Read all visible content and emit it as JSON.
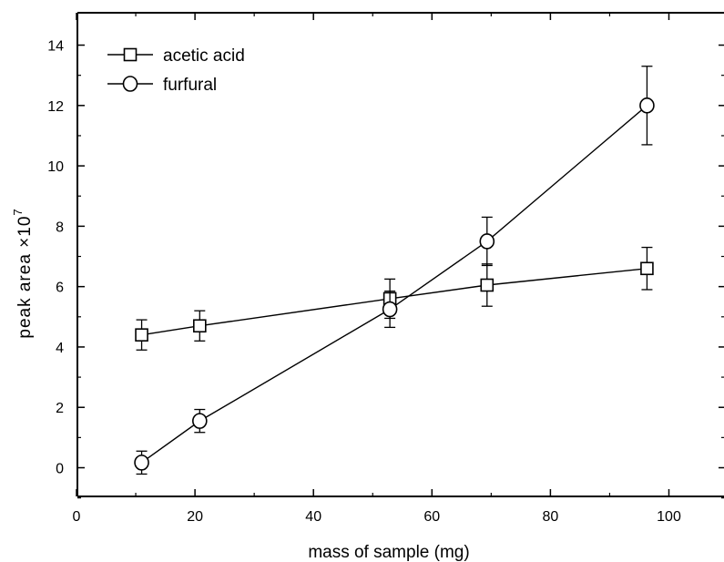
{
  "chart_data": {
    "type": "scatter",
    "xlabel": "mass of sample (mg)",
    "ylabel": "peak area ×10",
    "ylabel_exponent": "7",
    "xlim": [
      0,
      110
    ],
    "ylim": [
      -1,
      15
    ],
    "xticks": [
      0,
      20,
      40,
      60,
      80,
      100
    ],
    "xtick_labels": [
      "0",
      "20",
      "40",
      "60",
      "80",
      "100"
    ],
    "yticks": [
      0,
      2,
      4,
      6,
      8,
      10,
      12,
      14
    ],
    "ytick_labels": [
      "0",
      "2",
      "4",
      "6",
      "8",
      "10",
      "12",
      "14"
    ],
    "grid": false,
    "legend_position": "top-left",
    "series": [
      {
        "name": "acetic acid",
        "marker": "square",
        "color": "#000000",
        "x": [
          11.0,
          20.8,
          52.9,
          69.3,
          96.3
        ],
        "y": [
          4.4,
          4.7,
          5.6,
          6.05,
          6.6
        ],
        "err": [
          0.5,
          0.5,
          0.65,
          0.7,
          0.7
        ]
      },
      {
        "name": "furfural",
        "marker": "circle",
        "color": "#000000",
        "x": [
          11.0,
          20.8,
          52.9,
          69.3,
          96.3
        ],
        "y": [
          0.17,
          1.55,
          5.25,
          7.5,
          12.0
        ],
        "err": [
          0.38,
          0.38,
          0.6,
          0.8,
          1.3
        ]
      }
    ]
  }
}
